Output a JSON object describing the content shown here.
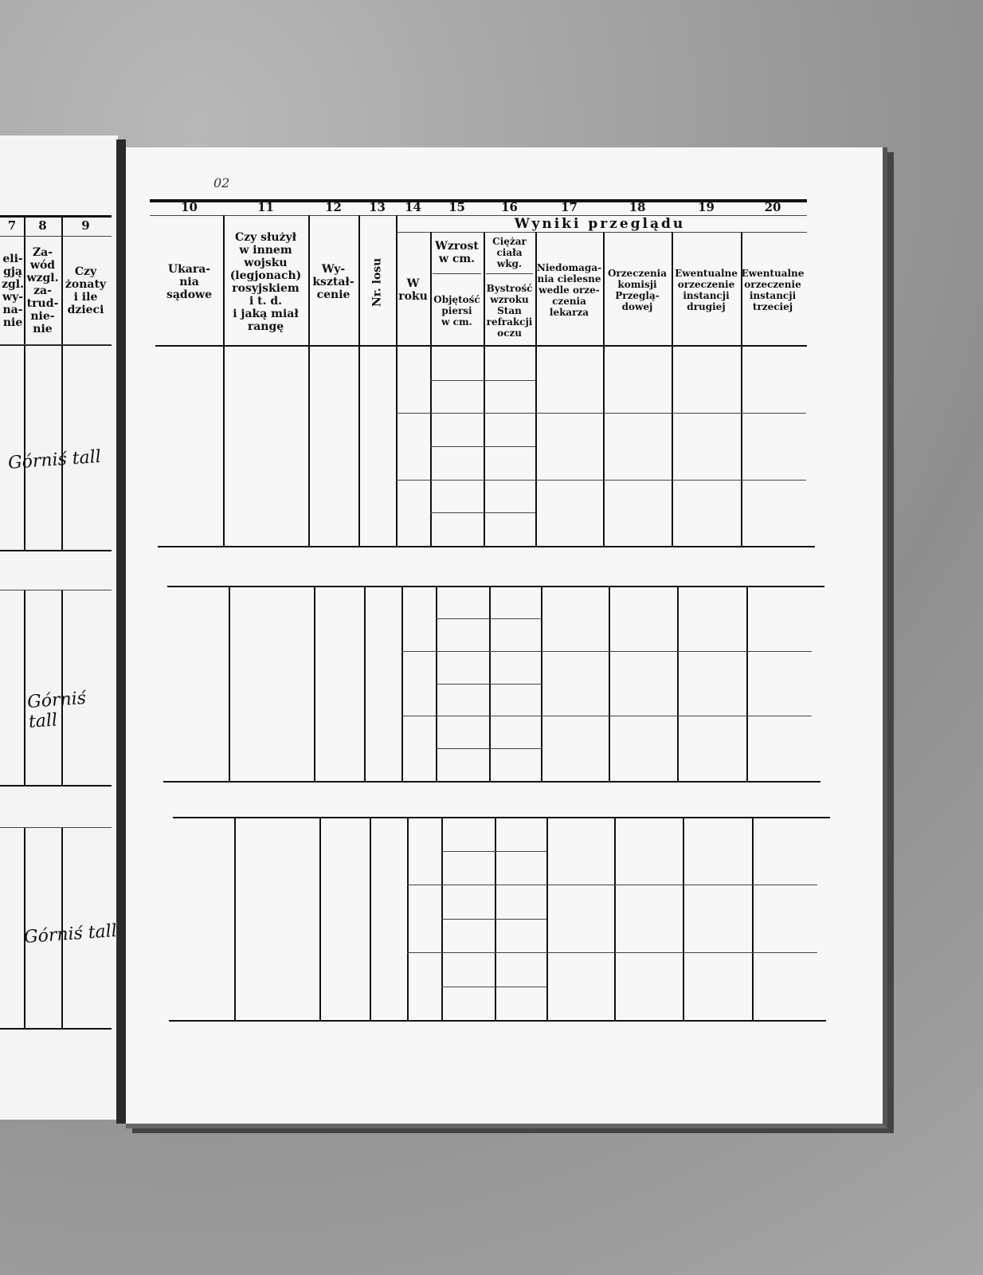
{
  "left_page": {
    "columns": [
      {
        "number": "7",
        "label": "eli-\ngją\nzgl.\nwy-\nna-\nnie"
      },
      {
        "number": "8",
        "label": "Za-\nwód\nwzgl.\nza-\ntrud-\nnie-\nnie"
      },
      {
        "number": "9",
        "label": "Czy\nżonaty\ni ile\ndzieci"
      }
    ],
    "handwritten": [
      "Górniś tall",
      "Górniś tall",
      "Górniś tall"
    ]
  },
  "right_page": {
    "page_mark": "02",
    "group_header": "Wyniki przeglądu",
    "columns": [
      {
        "number": "10",
        "label": "Ukara-\nnia\nsądowe"
      },
      {
        "number": "11",
        "label": "Czy służył\nw innem\nwojsku\n(legjonach)\nrosyjskiem\ni t. d.\ni jaką miał\nrangę"
      },
      {
        "number": "12",
        "label": "Wy-\nkształ-\ncenie"
      },
      {
        "number": "13",
        "label": "Nr. losu"
      },
      {
        "number": "14",
        "label": "W\nroku"
      },
      {
        "number": "15",
        "label_top": "Wzrost\nw cm.",
        "label_bottom": "Objętość\npiersi\nw cm."
      },
      {
        "number": "16",
        "label_top": "Ciężar\nciała wkg.",
        "label_bottom": "Bystrość\nwzroku\nStan\nrefrakcji\noczu"
      },
      {
        "number": "17",
        "label": "Niedomaga-\nnia cielesne\nwedle orze-\nczenia\nlekarza"
      },
      {
        "number": "18",
        "label": "Orzeczenia\nkomisji\nPrzeglą-\ndowej"
      },
      {
        "number": "19",
        "label": "Ewentualne\norzeczenie\ninstancji\ndrugiej"
      },
      {
        "number": "20",
        "label": "Ewentualne\norzeczenie\ninstancji\ntrzeciej"
      }
    ]
  }
}
